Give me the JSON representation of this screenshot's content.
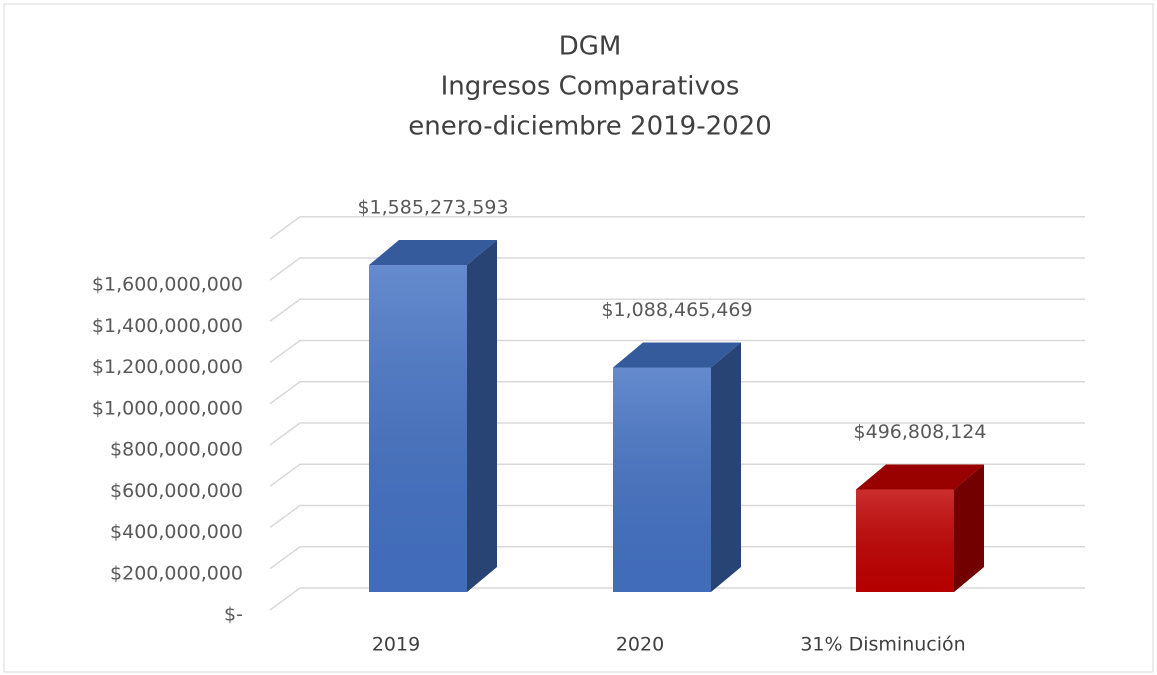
{
  "chart_data": {
    "type": "bar3d",
    "title": [
      "DGM",
      "Ingresos Comparativos",
      "enero-diciembre 2019-2020"
    ],
    "categories": [
      "2019",
      "2020",
      "31% Disminución"
    ],
    "values": [
      1585273593,
      1088465469,
      496808124
    ],
    "value_labels": [
      "$1,585,273,593",
      "$1,088,465,469",
      "$496,808,124"
    ],
    "colors": [
      "#4472c4",
      "#4472c4",
      "#c00000"
    ],
    "ylim": [
      0,
      1800000000
    ],
    "yticks": [
      {
        "value": 0,
        "label": "$-"
      },
      {
        "value": 200000000,
        "label": "$200,000,000"
      },
      {
        "value": 400000000,
        "label": "$400,000,000"
      },
      {
        "value": 600000000,
        "label": "$600,000,000"
      },
      {
        "value": 800000000,
        "label": "$800,000,000"
      },
      {
        "value": 1000000000,
        "label": "$1,000,000,000"
      },
      {
        "value": 1200000000,
        "label": "$1,200,000,000"
      },
      {
        "value": 1400000000,
        "label": "$1,400,000,000"
      },
      {
        "value": 1600000000,
        "label": "$1,600,000,000"
      }
    ],
    "grid": true
  }
}
